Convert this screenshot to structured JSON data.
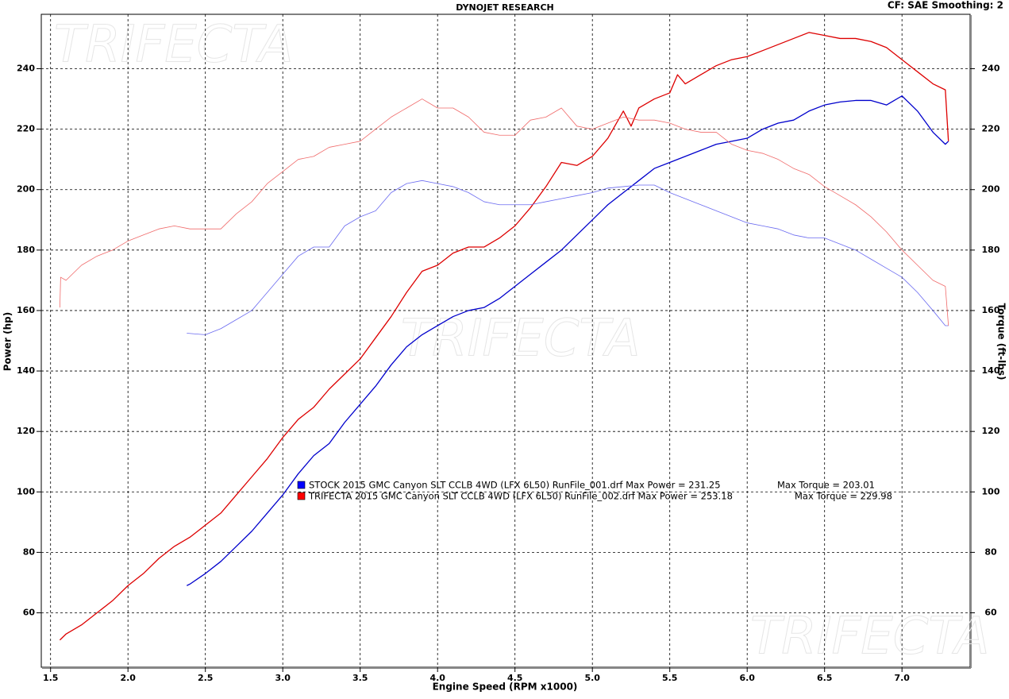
{
  "chart_data": {
    "type": "line",
    "title": "DYNOJET RESEARCH",
    "subtitle": "CF: SAE  Smoothing: 2",
    "watermark": "TRIFECTA",
    "xlabel": "Engine Speed (RPM x1000)",
    "ylabel": "Power (hp)",
    "y2label": "Torque (ft-lbs)",
    "xlim": [
      1.44,
      7.44
    ],
    "xticks": [
      1.5,
      {
        "value": 2,
        "label": "2.0"
      },
      2.5,
      {
        "value": 3,
        "label": "3.0"
      },
      3.5,
      {
        "value": 4,
        "label": "4.0"
      },
      4.5,
      {
        "value": 5,
        "label": "5.0"
      },
      5.5,
      {
        "value": 6,
        "label": "6.0"
      },
      6.5,
      {
        "value": 7,
        "label": "7.0"
      }
    ],
    "ylim": [
      42,
      258
    ],
    "yticks": [
      60,
      80,
      100,
      120,
      140,
      160,
      180,
      200,
      220,
      240
    ],
    "y2lim": [
      42,
      258
    ],
    "y2ticks": [
      60,
      80,
      100,
      120,
      140,
      160,
      180,
      200,
      220,
      240
    ],
    "grid": true,
    "legend": [
      {
        "label": "STOCK 2015 GMC Canyon SLT CCLB 4WD (LFX 6L50) RunFile_001.drf Max Power = 231.25",
        "max_torque": "Max Torque = 203.01",
        "color": "#0000ff"
      },
      {
        "label": "TRIFECTA 2015 GMC Canyon SLT CCLB 4WD (LFX 6L50) RunFile_002.drf Max Power = 253.18",
        "max_torque": "Max Torque = 229.98",
        "color": "#ff0000"
      }
    ],
    "series": [
      {
        "color": "#0000cc",
        "width": 1.3,
        "x": [
          2.38,
          2.4,
          2.5,
          2.6,
          2.7,
          2.8,
          2.9,
          3.0,
          3.1,
          3.2,
          3.3,
          3.4,
          3.5,
          3.6,
          3.7,
          3.8,
          3.9,
          4.0,
          4.1,
          4.2,
          4.3,
          4.4,
          4.5,
          4.6,
          4.7,
          4.8,
          4.9,
          5.0,
          5.1,
          5.2,
          5.3,
          5.4,
          5.5,
          5.6,
          5.7,
          5.8,
          5.9,
          6.0,
          6.1,
          6.2,
          6.3,
          6.4,
          6.5,
          6.6,
          6.7,
          6.8,
          6.9,
          7.0,
          7.1,
          7.2,
          7.28,
          7.3
        ],
        "values": [
          69,
          69.5,
          73,
          77,
          82,
          87,
          93,
          99,
          106,
          112,
          116,
          123,
          129,
          135,
          142,
          148,
          152,
          155,
          158,
          160,
          161,
          164,
          168,
          172,
          176,
          180,
          185,
          190,
          195,
          199,
          203,
          207,
          209,
          211,
          213,
          215,
          216,
          217,
          220,
          222,
          223,
          226,
          228,
          229,
          229.5,
          229.5,
          228,
          231,
          226,
          219,
          215,
          216
        ]
      },
      {
        "color": "#dd0000",
        "width": 1.3,
        "x": [
          1.56,
          1.6,
          1.7,
          1.8,
          1.9,
          2.0,
          2.1,
          2.2,
          2.3,
          2.4,
          2.5,
          2.6,
          2.7,
          2.8,
          2.9,
          3.0,
          3.1,
          3.2,
          3.3,
          3.4,
          3.5,
          3.6,
          3.7,
          3.8,
          3.9,
          4.0,
          4.1,
          4.2,
          4.3,
          4.4,
          4.5,
          4.6,
          4.7,
          4.8,
          4.9,
          5.0,
          5.1,
          5.2,
          5.25,
          5.3,
          5.4,
          5.5,
          5.55,
          5.6,
          5.7,
          5.8,
          5.9,
          6.0,
          6.1,
          6.2,
          6.3,
          6.4,
          6.5,
          6.6,
          6.7,
          6.8,
          6.9,
          7.0,
          7.1,
          7.2,
          7.28,
          7.3
        ],
        "values": [
          51,
          53,
          56,
          60,
          64,
          69,
          73,
          78,
          82,
          85,
          89,
          93,
          99,
          105,
          111,
          118,
          124,
          128,
          134,
          139,
          144,
          151,
          158,
          166,
          173,
          175,
          179,
          181,
          181,
          184,
          188,
          194,
          201,
          209,
          208,
          211,
          217,
          226,
          221,
          227,
          230,
          232,
          238,
          235,
          238,
          241,
          243,
          244,
          246,
          248,
          250,
          252,
          251,
          250,
          250,
          249,
          247,
          243,
          239,
          235,
          233,
          216
        ]
      },
      {
        "color": "#6a6af0",
        "width": 0.8,
        "axis": "y2",
        "x": [
          2.38,
          2.5,
          2.6,
          2.7,
          2.8,
          2.9,
          3.0,
          3.1,
          3.2,
          3.3,
          3.4,
          3.5,
          3.6,
          3.7,
          3.8,
          3.9,
          4.0,
          4.1,
          4.2,
          4.3,
          4.4,
          4.5,
          4.6,
          4.7,
          4.8,
          4.9,
          5.0,
          5.1,
          5.2,
          5.3,
          5.4,
          5.5,
          5.6,
          5.7,
          5.8,
          5.9,
          6.0,
          6.1,
          6.2,
          6.3,
          6.4,
          6.5,
          6.6,
          6.7,
          6.8,
          6.9,
          7.0,
          7.1,
          7.2,
          7.28,
          7.3
        ],
        "values": [
          152.5,
          152,
          154,
          157,
          160,
          166,
          172,
          178,
          181,
          181,
          188,
          191,
          193,
          199,
          202,
          203,
          202,
          201,
          199,
          196,
          195,
          195,
          195,
          196,
          197,
          198,
          199,
          200.5,
          201,
          201.5,
          201.5,
          199,
          197,
          195,
          193,
          191,
          189,
          188,
          187,
          185,
          184,
          184,
          182,
          180,
          177,
          174,
          171,
          166,
          160,
          155,
          155
        ]
      },
      {
        "color": "#f06a6a",
        "width": 0.8,
        "axis": "y2",
        "x": [
          1.56,
          1.565,
          1.6,
          1.7,
          1.8,
          1.9,
          2.0,
          2.1,
          2.2,
          2.3,
          2.4,
          2.5,
          2.6,
          2.7,
          2.8,
          2.9,
          3.0,
          3.1,
          3.2,
          3.3,
          3.4,
          3.5,
          3.6,
          3.7,
          3.8,
          3.9,
          4.0,
          4.1,
          4.2,
          4.3,
          4.4,
          4.5,
          4.6,
          4.7,
          4.8,
          4.9,
          5.0,
          5.1,
          5.2,
          5.3,
          5.4,
          5.5,
          5.6,
          5.7,
          5.8,
          5.9,
          6.0,
          6.1,
          6.2,
          6.3,
          6.4,
          6.5,
          6.6,
          6.7,
          6.8,
          6.9,
          7.0,
          7.1,
          7.2,
          7.28,
          7.3
        ],
        "values": [
          161,
          171,
          170,
          175,
          178,
          180,
          183,
          185,
          187,
          188,
          187,
          187,
          187,
          192,
          196,
          202,
          206,
          210,
          211,
          214,
          215,
          216,
          220,
          224,
          227,
          230,
          227,
          227,
          224,
          219,
          218,
          218,
          223,
          224,
          227,
          221,
          220,
          222,
          224,
          223,
          223,
          222,
          220,
          219,
          219,
          215,
          213,
          212,
          210,
          207,
          205,
          201,
          198,
          195,
          191,
          186,
          180,
          175,
          170,
          168,
          155
        ]
      }
    ]
  }
}
